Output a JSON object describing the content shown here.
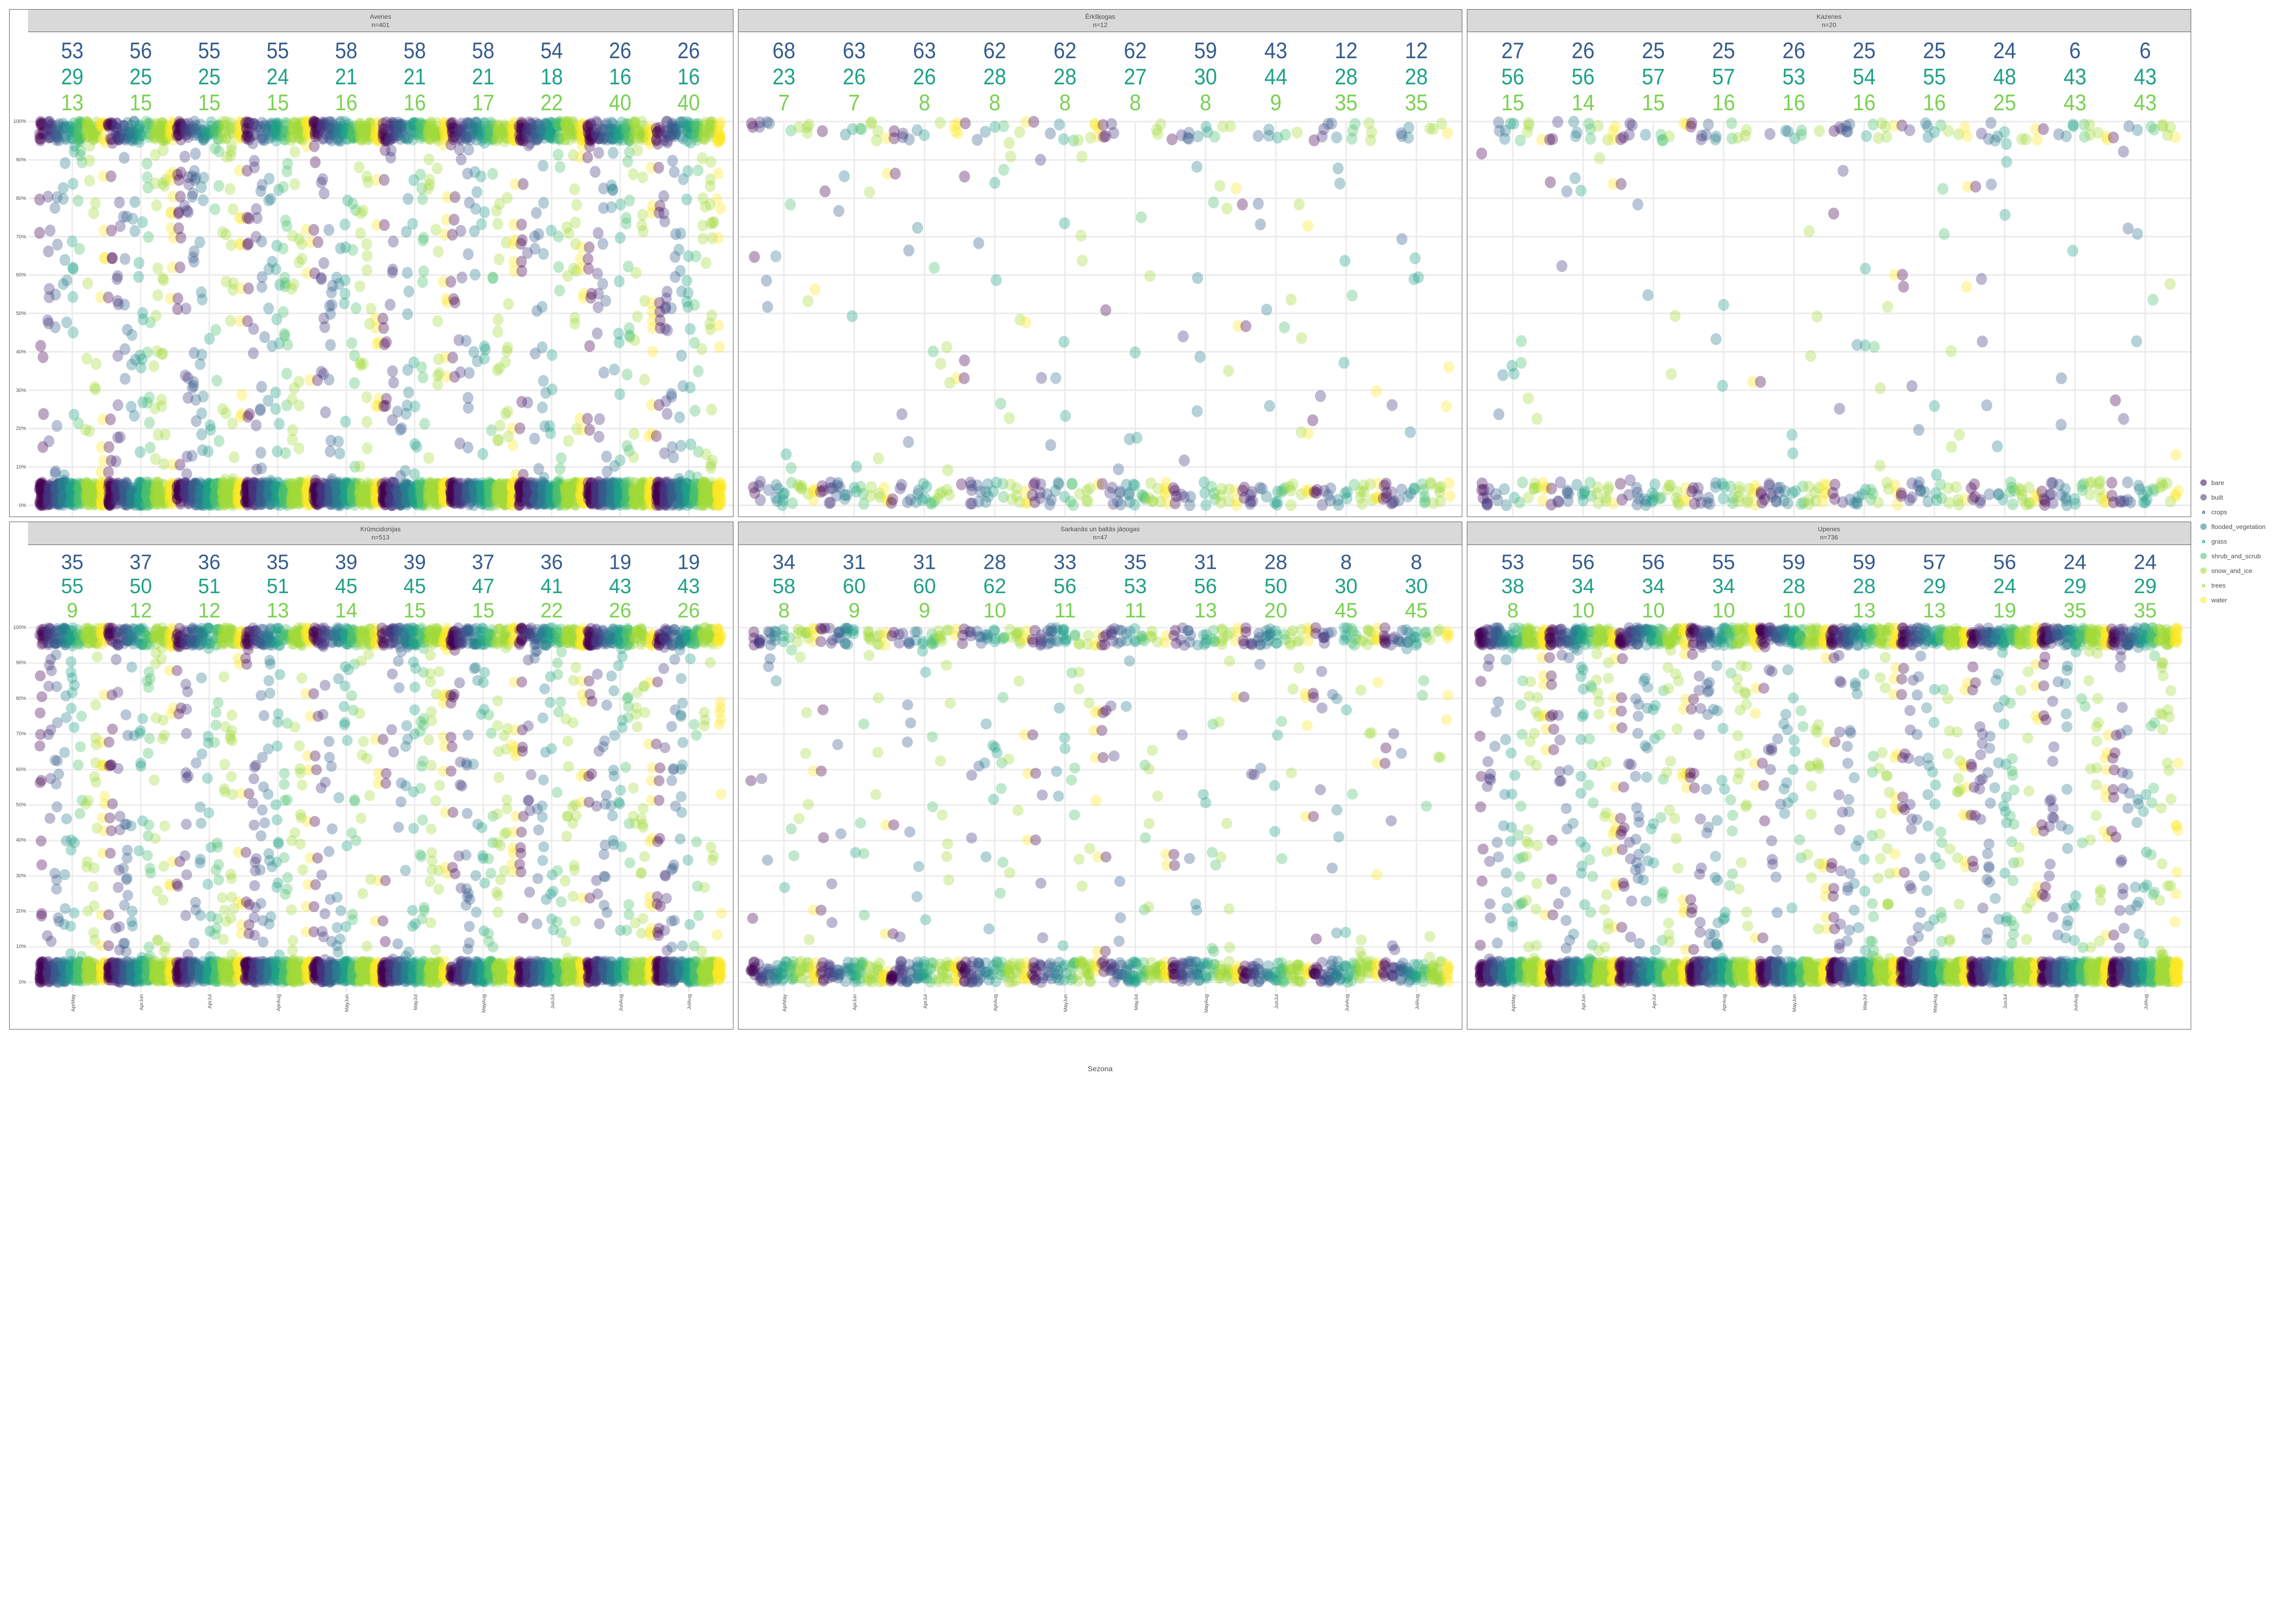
{
  "xlabel": "Sezona",
  "y_ticks": [
    "0%",
    "10%",
    "20%",
    "30%",
    "40%",
    "50%",
    "60%",
    "70%",
    "80%",
    "90%",
    "100%"
  ],
  "x_ticks": [
    "AprMay",
    "AprJun",
    "AprJul",
    "AprAug",
    "MayJun",
    "MayJul",
    "MayAug",
    "JunJul",
    "JunAug",
    "JulAug"
  ],
  "categories": [
    {
      "key": "bare",
      "label": "bare",
      "color": "#440154",
      "swatch": "dot"
    },
    {
      "key": "built",
      "label": "built",
      "color": "#46337e",
      "swatch": "dot"
    },
    {
      "key": "crops",
      "label": "crops",
      "color": "#365c8d",
      "swatch": "letter"
    },
    {
      "key": "flooded_vegetation",
      "label": "flooded_vegetation",
      "color": "#277f8e",
      "swatch": "dot"
    },
    {
      "key": "grass",
      "label": "grass",
      "color": "#1fa187",
      "swatch": "letter"
    },
    {
      "key": "shrub_and_scrub",
      "label": "shrub_and_scrub",
      "color": "#4ac16d",
      "swatch": "dot"
    },
    {
      "key": "snow_and_ice",
      "label": "snow_and_ice",
      "color": "#a0da39",
      "swatch": "dot"
    },
    {
      "key": "trees",
      "label": "trees",
      "color": "#a0da39",
      "swatch": "letter"
    },
    {
      "key": "water",
      "label": "water",
      "color": "#fde725",
      "swatch": "dot"
    }
  ],
  "strip_colors": {
    "crops": "#365c8d",
    "grass": "#1fa187",
    "trees": "#7ad151"
  },
  "panels": [
    {
      "title": "Avenes",
      "n": "n=401",
      "density": "high",
      "annotations": {
        "crops": [
          53,
          56,
          55,
          55,
          58,
          58,
          58,
          54,
          26,
          26
        ],
        "grass": [
          29,
          25,
          25,
          24,
          21,
          21,
          21,
          18,
          16,
          16
        ],
        "trees": [
          13,
          15,
          15,
          15,
          16,
          16,
          17,
          22,
          40,
          40
        ]
      }
    },
    {
      "title": "Ērkšķogas",
      "n": "n=12",
      "density": "low",
      "annotations": {
        "crops": [
          68,
          63,
          63,
          62,
          62,
          62,
          59,
          43,
          12,
          12
        ],
        "grass": [
          23,
          26,
          26,
          28,
          28,
          27,
          30,
          44,
          28,
          28
        ],
        "trees": [
          7,
          7,
          8,
          8,
          8,
          8,
          8,
          9,
          35,
          35
        ]
      }
    },
    {
      "title": "Kazenes",
      "n": "n=20",
      "density": "low",
      "annotations": {
        "crops": [
          27,
          26,
          25,
          25,
          26,
          25,
          25,
          24,
          6,
          6
        ],
        "grass": [
          56,
          56,
          57,
          57,
          53,
          54,
          55,
          48,
          43,
          43
        ],
        "trees": [
          15,
          14,
          15,
          16,
          16,
          16,
          16,
          25,
          43,
          43
        ]
      }
    },
    {
      "title": "Krūmcidonijas",
      "n": "n=513",
      "density": "high",
      "annotations": {
        "crops": [
          35,
          37,
          36,
          35,
          39,
          39,
          37,
          36,
          19,
          19
        ],
        "grass": [
          55,
          50,
          51,
          51,
          45,
          45,
          47,
          41,
          43,
          43
        ],
        "trees": [
          9,
          12,
          12,
          13,
          14,
          15,
          15,
          22,
          26,
          26
        ]
      }
    },
    {
      "title": "Sarkanās un baltās jāņogas",
      "n": "n=47",
      "density": "mid",
      "annotations": {
        "crops": [
          34,
          31,
          31,
          28,
          33,
          35,
          31,
          28,
          8,
          8
        ],
        "grass": [
          58,
          60,
          60,
          62,
          56,
          53,
          56,
          50,
          30,
          30
        ],
        "trees": [
          8,
          9,
          9,
          10,
          11,
          11,
          13,
          20,
          45,
          45
        ]
      }
    },
    {
      "title": "Upenes",
      "n": "n=736",
      "density": "high",
      "annotations": {
        "crops": [
          53,
          56,
          56,
          55,
          59,
          59,
          57,
          56,
          24,
          24
        ],
        "grass": [
          38,
          34,
          34,
          34,
          28,
          28,
          29,
          24,
          29,
          29
        ],
        "trees": [
          8,
          10,
          10,
          10,
          10,
          13,
          13,
          19,
          35,
          35
        ]
      }
    }
  ],
  "style": {
    "background": "#ffffff",
    "panel_bg": "#ffffff",
    "strip_bg": "#d9d9d9",
    "grid_major": "#ebebeb",
    "grid_minor": "#f5f5f5",
    "border": "#4d4d4d",
    "text": "#4d4d4d",
    "annotation_fontsize": 12,
    "axis_fontsize": 11,
    "point_opacity": 0.35,
    "point_radius": 3.2
  }
}
